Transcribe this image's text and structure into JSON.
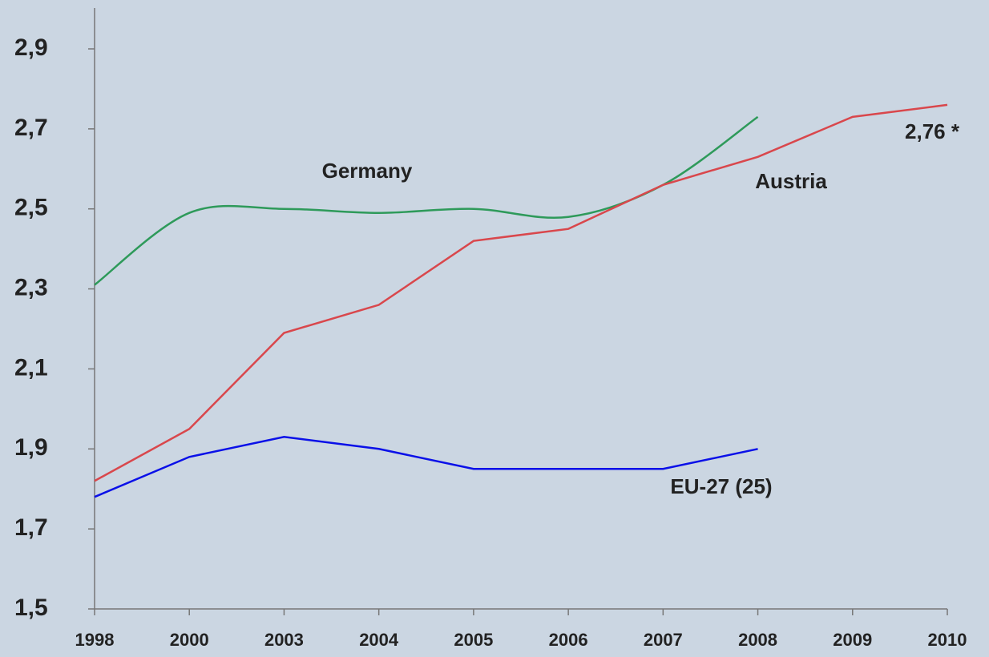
{
  "chart_data": {
    "type": "line",
    "categories": [
      "1998",
      "2000",
      "2003",
      "2004",
      "2005",
      "2006",
      "2007",
      "2008",
      "2009",
      "2010"
    ],
    "series": [
      {
        "name": "Germany",
        "color": "#2e9a5a",
        "smooth": true,
        "values": [
          2.31,
          2.49,
          2.5,
          2.49,
          2.5,
          2.48,
          2.56,
          2.73,
          null,
          null
        ]
      },
      {
        "name": "Austria",
        "color": "#d9474c",
        "smooth": false,
        "values": [
          1.82,
          1.95,
          2.19,
          2.26,
          2.42,
          2.45,
          2.56,
          2.63,
          2.73,
          2.76
        ]
      },
      {
        "name": "EU-27 (25)",
        "color": "#0a10e8",
        "smooth": false,
        "values": [
          1.78,
          1.88,
          1.93,
          1.9,
          1.85,
          1.85,
          1.85,
          1.9,
          null,
          null
        ]
      }
    ],
    "annotations": [
      "2,76 *"
    ],
    "ylim": [
      1.5,
      3.0
    ],
    "yticks": [
      {
        "value": 1.5,
        "label": "1,5"
      },
      {
        "value": 1.7,
        "label": "1,7"
      },
      {
        "value": 1.9,
        "label": "1,9"
      },
      {
        "value": 2.1,
        "label": "2,1"
      },
      {
        "value": 2.3,
        "label": "2,3"
      },
      {
        "value": 2.5,
        "label": "2,5"
      },
      {
        "value": 2.7,
        "label": "2,7"
      },
      {
        "value": 2.9,
        "label": "2,9"
      }
    ],
    "grid": false
  }
}
